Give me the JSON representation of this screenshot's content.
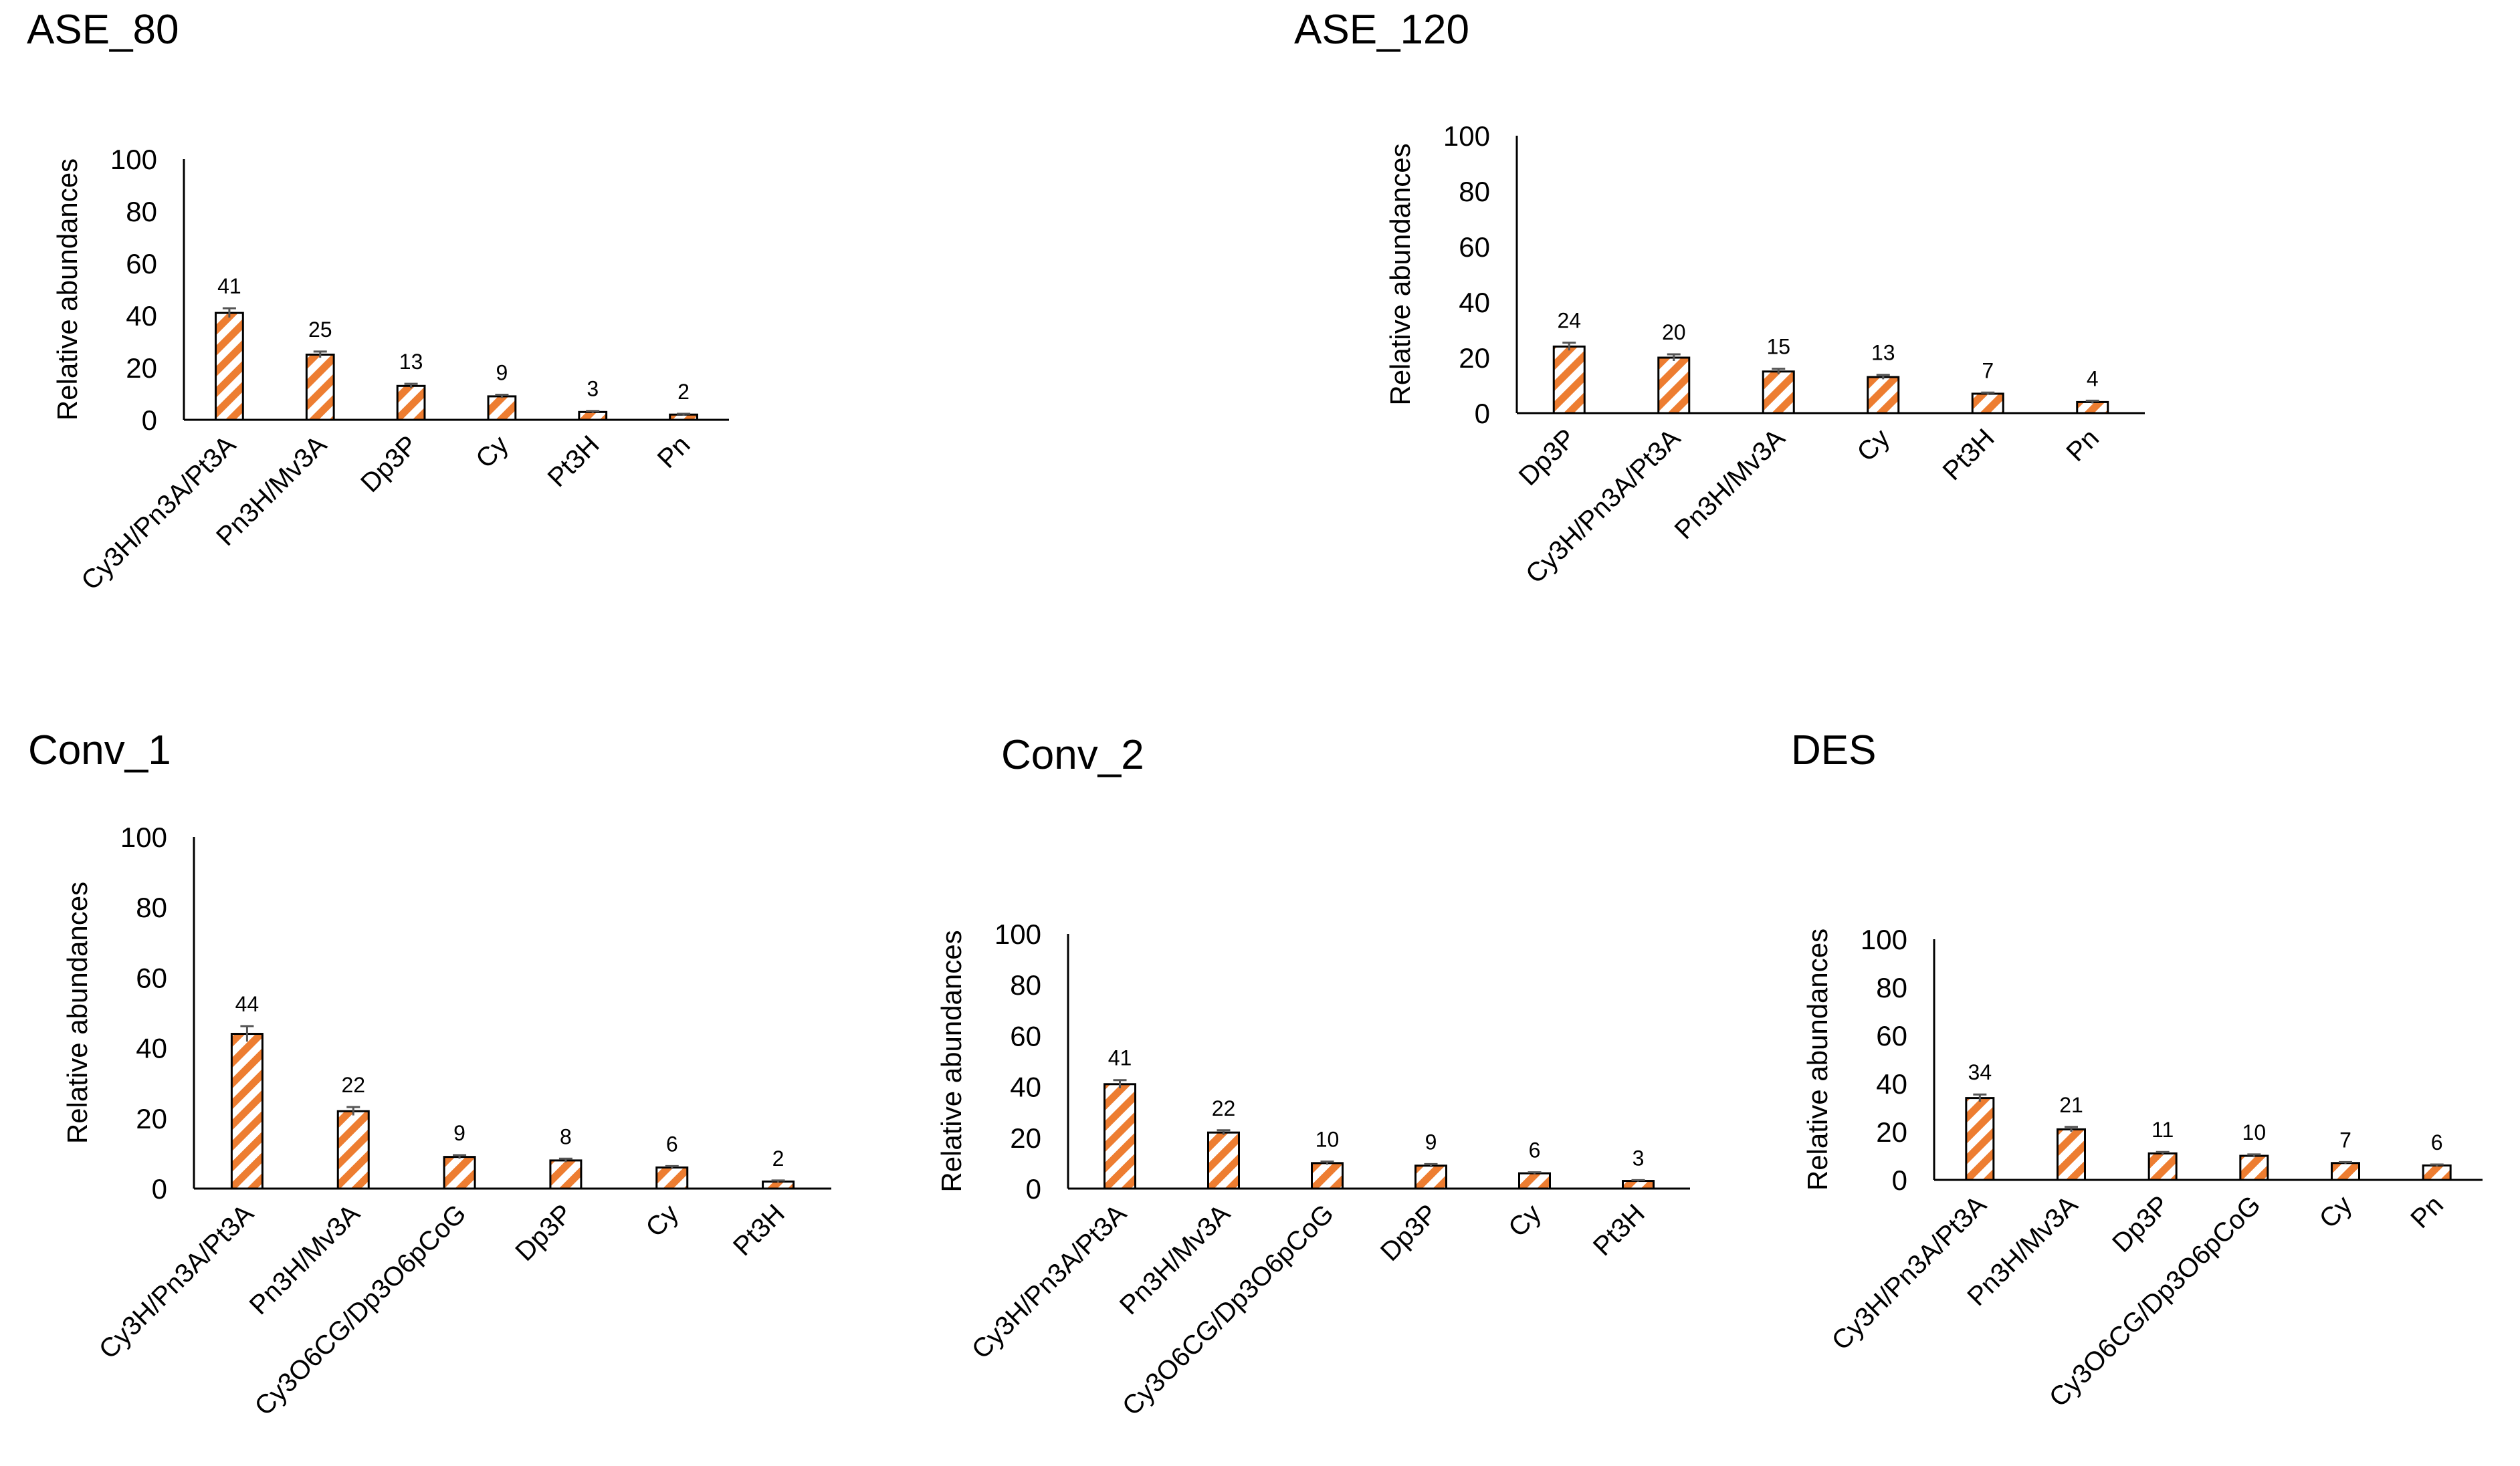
{
  "colors": {
    "bar_stroke": "#ED7D31",
    "bar_fill": "#ED7D31",
    "axis": "#000000",
    "error": "#555555"
  },
  "chart_data": [
    {
      "type": "bar",
      "title": "ASE_80",
      "ylabel": "Relative abundances",
      "ylim": [
        0,
        100
      ],
      "yticks": [
        0,
        20,
        40,
        60,
        80,
        100
      ],
      "categories": [
        "Cy3H/Pn3A/Pt3A",
        "Pn3H/Mv3A",
        "Dp3P",
        "Cy",
        "Pt3H",
        "Pn"
      ],
      "values": [
        41,
        25,
        13,
        9,
        3,
        2
      ],
      "data_labels": [
        "41",
        "25",
        "13",
        "9",
        "3",
        "2"
      ],
      "errors": [
        1.8,
        1.2,
        0.8,
        0.6,
        0.4,
        0.3
      ]
    },
    {
      "type": "bar",
      "title": "ASE_120",
      "ylabel": "Relative abundances",
      "ylim": [
        0,
        100
      ],
      "yticks": [
        0,
        20,
        40,
        60,
        80,
        100
      ],
      "categories": [
        "Dp3P",
        "Cy3H/Pn3A/Pt3A",
        "Pn3H/Mv3A",
        "Cy",
        "Pt3H",
        "Pn"
      ],
      "values": [
        24,
        20,
        15,
        13,
        7,
        4
      ],
      "data_labels": [
        "24",
        "20",
        "15",
        "13",
        "7",
        "4"
      ],
      "errors": [
        1.4,
        1.2,
        1.0,
        0.8,
        0.4,
        0.5
      ]
    },
    {
      "type": "bar",
      "title": "Conv_1",
      "ylabel": "Relative abundances",
      "ylim": [
        0,
        100
      ],
      "yticks": [
        0,
        20,
        40,
        60,
        80,
        100
      ],
      "categories": [
        "Cy3H/Pn3A/Pt3A",
        "Pn3H/Mv3A",
        "Cy3O6CG/Dp3O6pCoG",
        "Dp3P",
        "Cy",
        "Pt3H"
      ],
      "values": [
        44,
        22,
        9,
        8,
        6,
        2
      ],
      "data_labels": [
        "44",
        "22",
        "9",
        "8",
        "6",
        "2"
      ],
      "errors": [
        2.2,
        1.2,
        0.5,
        0.5,
        0.4,
        0.3
      ]
    },
    {
      "type": "bar",
      "title": "Conv_2",
      "ylabel": "Relative abundances",
      "ylim": [
        0,
        100
      ],
      "yticks": [
        0,
        20,
        40,
        60,
        80,
        100
      ],
      "categories": [
        "Cy3H/Pn3A/Pt3A",
        "Pn3H/Mv3A",
        "Cy3O6CG/Dp3O6pCoG",
        "Dp3P",
        "Cy",
        "Pt3H"
      ],
      "values": [
        41,
        22,
        10,
        9,
        6,
        3
      ],
      "data_labels": [
        "41",
        "22",
        "10",
        "9",
        "6",
        "3"
      ],
      "errors": [
        1.6,
        0.9,
        0.6,
        0.6,
        0.4,
        0.3
      ]
    },
    {
      "type": "bar",
      "title": "DES",
      "ylabel": "Relative abundances",
      "ylim": [
        0,
        100
      ],
      "yticks": [
        0,
        20,
        40,
        60,
        80,
        100
      ],
      "categories": [
        "Cy3H/Pn3A/Pt3A",
        "Pn3H/Mv3A",
        "Dp3P",
        "Cy3O6CG/Dp3O6pCoG",
        "Cy",
        "Pn"
      ],
      "values": [
        34,
        21,
        11,
        10,
        7,
        6
      ],
      "data_labels": [
        "34",
        "21",
        "11",
        "10",
        "7",
        "6"
      ],
      "errors": [
        1.5,
        1.0,
        0.6,
        0.6,
        0.4,
        0.4
      ]
    }
  ]
}
